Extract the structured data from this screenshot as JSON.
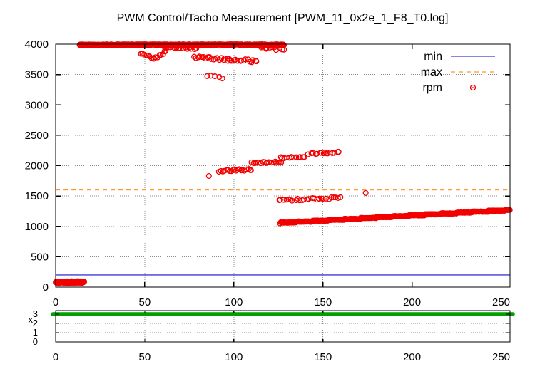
{
  "chart_data": {
    "type": "scatter",
    "title": "PWM Control/Tacho Measurement [PWM_11_0x2e_1_F8_T0.log]",
    "grid": true,
    "legend_position": "top-right-inside",
    "main_plot": {
      "x_range": [
        0,
        255
      ],
      "y_range": [
        0,
        4000
      ],
      "x_ticks": [
        0,
        50,
        100,
        150,
        200,
        250
      ],
      "y_ticks": [
        0,
        500,
        1000,
        1500,
        2000,
        2500,
        3000,
        3500,
        4000
      ],
      "min_line": {
        "label": "min",
        "value": 200,
        "color": "#3e3ed8",
        "style": "solid"
      },
      "max_line": {
        "label": "max",
        "value": 1600,
        "color": "#ff9a33",
        "style": "dashed"
      },
      "rpm_series": {
        "label": "rpm",
        "color": "#f20000",
        "marker": "open-circle",
        "segments": [
          {
            "x0": 0,
            "x1": 16,
            "rpm0": 80,
            "rpm1": 85,
            "n": 90,
            "jitter": 14
          },
          {
            "x0": 13.5,
            "x1": 128,
            "rpm0": 3990,
            "rpm1": 3990,
            "n": 430,
            "jitter": 9
          },
          {
            "x0": 48,
            "x1": 55,
            "rpm0": 3845,
            "rpm1": 3765,
            "n": 8,
            "jitter": 20
          },
          {
            "x0": 55,
            "x1": 62,
            "rpm0": 3765,
            "rpm1": 3885,
            "n": 8,
            "jitter": 20
          },
          {
            "x0": 61,
            "x1": 79,
            "rpm0": 3945,
            "rpm1": 3930,
            "n": 15,
            "jitter": 14
          },
          {
            "x0": 78,
            "x1": 97,
            "rpm0": 3785,
            "rpm1": 3750,
            "n": 19,
            "jitter": 22
          },
          {
            "x0": 97,
            "x1": 113,
            "rpm0": 3745,
            "rpm1": 3720,
            "n": 16,
            "jitter": 24
          },
          {
            "x0": 85.5,
            "x1": 93,
            "rpm0": 3470,
            "rpm1": 3450,
            "n": 5,
            "jitter": 16
          },
          {
            "x0": 115,
            "x1": 128,
            "rpm0": 3955,
            "rpm1": 3920,
            "n": 11,
            "jitter": 26
          },
          {
            "x0": 92,
            "x1": 110,
            "rpm0": 1912,
            "rpm1": 1938,
            "n": 20,
            "jitter": 16
          },
          {
            "x0": 110,
            "x1": 127,
            "rpm0": 2042,
            "rpm1": 2062,
            "n": 18,
            "jitter": 14
          },
          {
            "x0": 126,
            "x1": 140,
            "rpm0": 2130,
            "rpm1": 2152,
            "n": 12,
            "jitter": 13
          },
          {
            "x0": 142,
            "x1": 159,
            "rpm0": 2198,
            "rpm1": 2218,
            "n": 15,
            "jitter": 13
          },
          {
            "x0": 125,
            "x1": 160,
            "rpm0": 1428,
            "rpm1": 1472,
            "n": 27,
            "jitter": 16
          },
          {
            "x0": 126,
            "x1": 255,
            "rpm0": 1063,
            "rpm1": 1273,
            "n": 430,
            "jitter": 5,
            "step": {
              "width": 9,
              "rise": 15
            }
          }
        ],
        "points": [
          [
            86,
            1830
          ],
          [
            174,
            1550
          ]
        ]
      }
    },
    "sub_plot": {
      "y_label": "x",
      "x_range": [
        0,
        255
      ],
      "y_range": [
        0,
        3.4
      ],
      "x_ticks": [
        0,
        50,
        100,
        150,
        200,
        250
      ],
      "y_ticks": [
        0,
        1,
        2,
        3
      ],
      "series": {
        "label": "x",
        "value": 3,
        "color": "#00a000",
        "style": "thick-line"
      }
    },
    "colors": {
      "rpm": "#f20000",
      "min": "#3e3ed8",
      "max": "#ff9a33",
      "x_series": "#00a000",
      "grid": "#8a8a8a",
      "border": "#000000"
    }
  }
}
